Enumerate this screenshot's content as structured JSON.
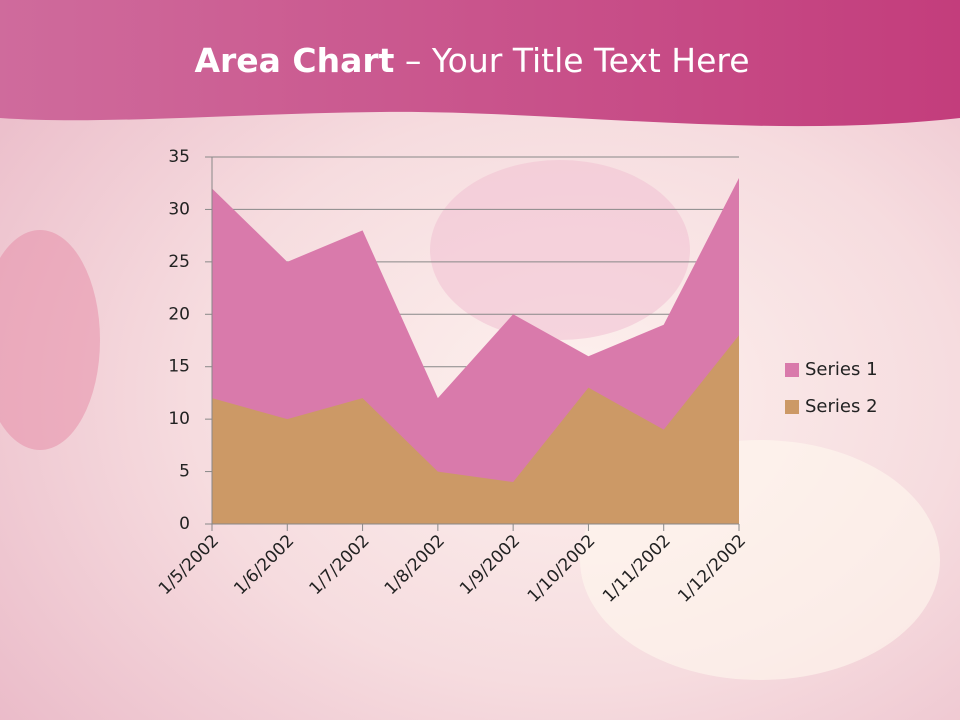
{
  "chart_data": {
    "type": "area",
    "title": {
      "bold": "Area Chart",
      "rest": " – Your Title Text Here"
    },
    "categories": [
      "1/5/2002",
      "1/6/2002",
      "1/7/2002",
      "1/8/2002",
      "1/9/2002",
      "1/10/2002",
      "1/11/2002",
      "1/12/2002"
    ],
    "series": [
      {
        "name": "Series 1",
        "color": "#d97aab",
        "values": [
          32,
          25,
          28,
          12,
          20,
          16,
          19,
          33
        ]
      },
      {
        "name": "Series 2",
        "color": "#cc9966",
        "values": [
          12,
          10,
          12,
          5,
          4,
          13,
          9,
          18
        ]
      }
    ],
    "ylim": [
      0,
      35
    ],
    "yticks": [
      0,
      5,
      10,
      15,
      20,
      25,
      30,
      35
    ],
    "grid": true,
    "legend": "right"
  }
}
